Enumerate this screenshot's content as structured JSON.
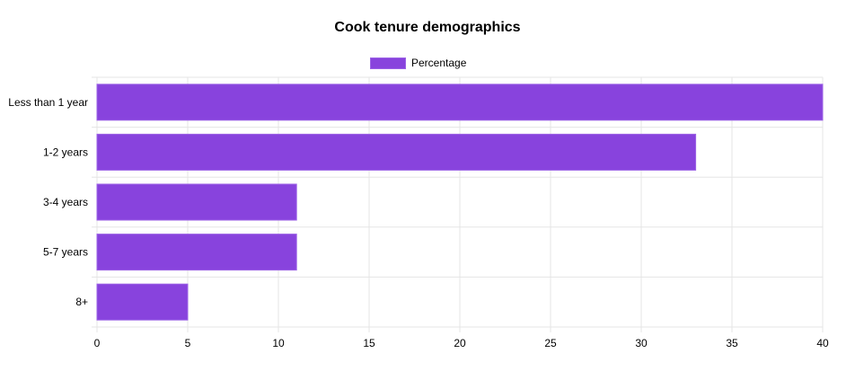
{
  "chart_data": {
    "type": "bar",
    "orientation": "horizontal",
    "title": "Cook tenure demographics",
    "categories": [
      "Less than 1 year",
      "1-2 years",
      "3-4 years",
      "5-7 years",
      "8+"
    ],
    "series": [
      {
        "name": "Percentage",
        "values": [
          40,
          33,
          11,
          11,
          5
        ]
      }
    ],
    "xlim": [
      0,
      40
    ],
    "x_ticks": [
      0,
      5,
      10,
      15,
      20,
      25,
      30,
      35,
      40
    ],
    "grid": true,
    "legend_position": "top-center",
    "colors": {
      "bar_fill": "#8843dd",
      "bar_border": "#9c63e6",
      "grid": "#e5e5e5"
    }
  }
}
